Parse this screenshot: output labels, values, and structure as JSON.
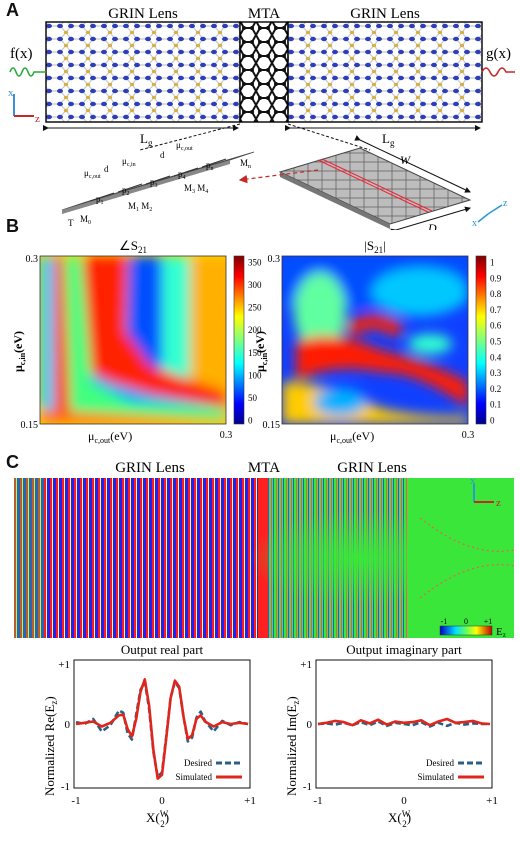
{
  "panel_a": {
    "letter": "A",
    "grin_left": "GRIN Lens",
    "mta": "MTA",
    "grin_right": "GRIN Lens",
    "input_label": "f(x)",
    "output_label": "g(x)",
    "axis_x": "x",
    "axis_z": "z",
    "lg_left": "L",
    "lg_right": "L",
    "lg_sub": "g",
    "unit_labels": {
      "mu": "μ",
      "sub_out": "c,out",
      "sub_in": "c,in",
      "d": "d",
      "T": "T",
      "p1": "p",
      "p2": "p",
      "p3": "p",
      "p4": "p",
      "pn": "p",
      "M0": "M",
      "M1M2": "M",
      "M3M4": "M",
      "Mn": "M",
      "W": "W",
      "D": "D",
      "axis3d_x": "x",
      "axis3d_z": "z"
    }
  },
  "panel_b": {
    "letter": "B",
    "left": {
      "title_sym": "∠S",
      "title_sub": "21",
      "ylabel_mu": "μ",
      "ylabel_sub": "c,in",
      "ylabel_unit": "(eV)",
      "xlabel_mu": "μ",
      "xlabel_sub": "c,out",
      "xlabel_unit": "(eV)",
      "y_top": "0.3",
      "y_bottom": "0.15",
      "x_right": "0.3",
      "colorbar_ticks": [
        "350",
        "300",
        "250",
        "200",
        "150",
        "100",
        "50",
        "0"
      ]
    },
    "right": {
      "title": "|S",
      "title_sub": "21",
      "title_end": "|",
      "ylabel_mu": "μ",
      "ylabel_sub": "c,in",
      "ylabel_unit": "(eV)",
      "xlabel_mu": "μ",
      "xlabel_sub": "c,out",
      "xlabel_unit": "(eV)",
      "y_top": "0.3",
      "y_bottom": "0.15",
      "x_right": "0.3",
      "colorbar_ticks": [
        "1",
        "0.9",
        "0.8",
        "0.7",
        "0.6",
        "0.5",
        "0.4",
        "0.3",
        "0.2",
        "0.1",
        "0"
      ]
    }
  },
  "panel_c": {
    "letter": "C",
    "grin_left": "GRIN Lens",
    "mta": "MTA",
    "grin_right": "GRIN Lens",
    "axis_x": "x",
    "axis_z": "z",
    "colorbar_ticks": [
      "-1",
      "0",
      "+1"
    ],
    "colorbar_label": "E",
    "colorbar_sub": "z",
    "plots": [
      {
        "title": "Output real part",
        "ylabel": "Normalized Re(E",
        "ylabel_sub": "z",
        "yticks": [
          "+1",
          "0",
          "-1"
        ],
        "xticks": [
          "-1",
          "0",
          "+1"
        ],
        "xlabel_main": "X(",
        "xlabel_num": "W",
        "xlabel_den": "2",
        "legend": [
          "Desired",
          "Simulated"
        ]
      },
      {
        "title": "Output imaginary part",
        "ylabel": "Normalized Im(E",
        "ylabel_sub": "z",
        "yticks": [
          "+1",
          "0",
          "-1"
        ],
        "xticks": [
          "-1",
          "0",
          "+1"
        ],
        "xlabel_main": "X(",
        "xlabel_num": "W",
        "xlabel_den": "2",
        "legend": [
          "Desired",
          "Simulated"
        ]
      }
    ]
  },
  "colors": {
    "desired": "#2b5f86",
    "simulated": "#e0261b",
    "field_bg": "#3be63b",
    "atom_blue": "#2d3fb8",
    "atom_gold": "#d6b040",
    "arrow_green": "#27a83a",
    "arrow_red": "#c62828"
  },
  "chart_data": [
    {
      "type": "line",
      "title": "Output real part",
      "xlabel": "X(W/2)",
      "ylabel": "Normalized Re(Ez)",
      "xlim": [
        -1,
        1
      ],
      "ylim": [
        -1,
        1
      ],
      "series": [
        {
          "name": "Desired",
          "x": [
            -1,
            -0.9,
            -0.8,
            -0.7,
            -0.6,
            -0.5,
            -0.45,
            -0.4,
            -0.35,
            -0.3,
            -0.25,
            -0.2,
            -0.15,
            -0.1,
            -0.05,
            0,
            0.05,
            0.1,
            0.15,
            0.2,
            0.25,
            0.3,
            0.35,
            0.4,
            0.45,
            0.5,
            0.6,
            0.7,
            0.8,
            0.9,
            1
          ],
          "y": [
            0.03,
            0.0,
            0.08,
            -0.12,
            -0.02,
            0.22,
            0.18,
            -0.15,
            -0.25,
            0.15,
            0.55,
            0.68,
            0.25,
            -0.45,
            -0.85,
            -0.78,
            -0.2,
            0.42,
            0.68,
            0.58,
            0.12,
            -0.28,
            -0.22,
            0.1,
            0.2,
            0.05,
            -0.12,
            0.05,
            -0.02,
            0.03,
            0.0
          ]
        },
        {
          "name": "Simulated",
          "x": [
            -1,
            -0.9,
            -0.8,
            -0.7,
            -0.6,
            -0.5,
            -0.45,
            -0.4,
            -0.35,
            -0.3,
            -0.25,
            -0.2,
            -0.15,
            -0.1,
            -0.05,
            0,
            0.05,
            0.1,
            0.15,
            0.2,
            0.25,
            0.3,
            0.35,
            0.4,
            0.45,
            0.5,
            0.6,
            0.7,
            0.8,
            0.9,
            1
          ],
          "y": [
            0.0,
            0.02,
            0.04,
            -0.04,
            0.02,
            0.14,
            0.15,
            -0.08,
            -0.2,
            0.08,
            0.52,
            0.72,
            0.3,
            -0.42,
            -0.88,
            -0.82,
            -0.22,
            0.42,
            0.7,
            0.6,
            0.12,
            -0.24,
            -0.18,
            0.08,
            0.14,
            0.04,
            -0.04,
            0.03,
            0.0,
            0.02,
            0.0
          ]
        }
      ]
    },
    {
      "type": "line",
      "title": "Output imaginary part",
      "xlabel": "X(W/2)",
      "ylabel": "Normalized Im(Ez)",
      "xlim": [
        -1,
        1
      ],
      "ylim": [
        -1,
        1
      ],
      "series": [
        {
          "name": "Desired",
          "x": [
            -1,
            -0.9,
            -0.8,
            -0.7,
            -0.6,
            -0.5,
            -0.4,
            -0.3,
            -0.2,
            -0.1,
            0,
            0.1,
            0.2,
            0.3,
            0.4,
            0.5,
            0.6,
            0.7,
            0.8,
            0.9,
            1
          ],
          "y": [
            0.0,
            0.01,
            -0.01,
            0.02,
            -0.02,
            0.03,
            -0.02,
            0.04,
            -0.03,
            0.02,
            0.0,
            -0.02,
            0.03,
            -0.04,
            0.02,
            -0.03,
            0.02,
            -0.01,
            0.01,
            0.0,
            0.0
          ]
        },
        {
          "name": "Simulated",
          "x": [
            -1,
            -0.9,
            -0.8,
            -0.7,
            -0.6,
            -0.5,
            -0.4,
            -0.3,
            -0.2,
            -0.1,
            0,
            0.1,
            0.2,
            0.3,
            0.4,
            0.5,
            0.6,
            0.7,
            0.8,
            0.9,
            1
          ],
          "y": [
            0.0,
            0.02,
            0.05,
            0.03,
            -0.02,
            0.06,
            0.01,
            0.07,
            -0.01,
            0.04,
            0.02,
            0.03,
            0.06,
            -0.02,
            0.04,
            0.08,
            0.02,
            0.03,
            0.05,
            0.01,
            0.0
          ]
        }
      ]
    }
  ]
}
